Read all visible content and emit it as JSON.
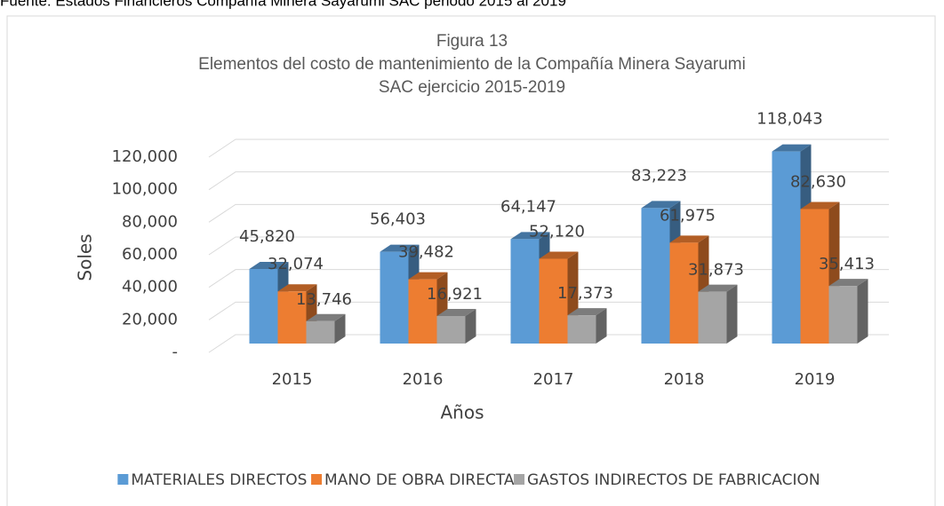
{
  "chart_data": {
    "type": "bar3d",
    "source_note": "Fuente: Estados Financieros Compañía Minera Sayarumi SAC periodo 2015 al 2019",
    "title": [
      "Figura 13",
      "Elementos del costo de mantenimiento  de la Compañía Minera Sayarumi",
      "SAC ejercicio 2015-2019"
    ],
    "x_label": "Años",
    "y_label": "Soles",
    "categories": [
      "2015",
      "2016",
      "2017",
      "2018",
      "2019"
    ],
    "series": [
      {
        "name": "MATERIALES DIRECTOS",
        "color": "#5b9bd5",
        "values": [
          45820,
          56403,
          64147,
          83223,
          118043
        ],
        "value_labels": [
          "45,820",
          "56,403",
          "64,147",
          "83,223",
          "118,043"
        ]
      },
      {
        "name": "MANO DE OBRA DIRECTA",
        "color": "#ed7d31",
        "values": [
          32074,
          39482,
          52120,
          61975,
          82630
        ],
        "value_labels": [
          "32,074",
          "39,482",
          "52,120",
          "61,975",
          "82,630"
        ]
      },
      {
        "name": "GASTOS INDIRECTOS DE FABRICACION",
        "color": "#a5a5a5",
        "values": [
          13746,
          16921,
          17373,
          31873,
          35413
        ],
        "value_labels": [
          "13,746",
          "16,921",
          "17,373",
          "31,873",
          "35,413"
        ]
      }
    ],
    "ylim": [
      0,
      120000
    ],
    "yticks": [
      {
        "value": 0,
        "label": "-"
      },
      {
        "value": 20000,
        "label": "20,000"
      },
      {
        "value": 40000,
        "label": "40,000"
      },
      {
        "value": 60000,
        "label": "60,000"
      },
      {
        "value": 80000,
        "label": "80,000"
      },
      {
        "value": 100000,
        "label": "100,000"
      },
      {
        "value": 120000,
        "label": "120,000"
      }
    ],
    "grid": true,
    "legend": "bottom"
  }
}
